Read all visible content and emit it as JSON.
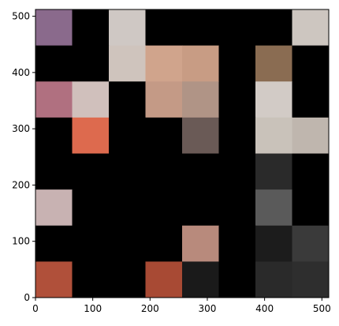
{
  "chart_data": {
    "type": "image",
    "grid_rows": 8,
    "grid_cols": 8,
    "xlim": [
      0,
      512
    ],
    "ylim": [
      0,
      512
    ],
    "xticks": [
      0,
      100,
      200,
      300,
      400,
      500
    ],
    "yticks": [
      0,
      100,
      200,
      300,
      400,
      500
    ],
    "xtick_labels": [
      "0",
      "100",
      "200",
      "300",
      "400",
      "500"
    ],
    "ytick_labels": [
      "0",
      "100",
      "200",
      "300",
      "400",
      "500"
    ],
    "grid": false,
    "tiles_top_to_bottom": [
      [
        "#8a6a8c",
        "#000000",
        "#cfc8c4",
        "#000000",
        "#000000",
        "#000000",
        "#000000",
        "#cdc6c0"
      ],
      [
        "#000000",
        "#000000",
        "#cfc4bd",
        "#d0a48c",
        "#c89c84",
        "#000000",
        "#8a6c52",
        "#000000"
      ],
      [
        "#b07080",
        "#d0c0bc",
        "#000000",
        "#c49a86",
        "#b09486",
        "#000000",
        "#d2cbc6",
        "#000000"
      ],
      [
        "#000000",
        "#dd6a4e",
        "#000000",
        "#000000",
        "#6a5a56",
        "#000000",
        "#c9c2ba",
        "#bfb6ae"
      ],
      [
        "#000000",
        "#000000",
        "#000000",
        "#000000",
        "#000000",
        "#000000",
        "#2a2a2a",
        "#000000"
      ],
      [
        "#c8b2b2",
        "#000000",
        "#000000",
        "#000000",
        "#000000",
        "#000000",
        "#5a5a5a",
        "#000000"
      ],
      [
        "#000000",
        "#000000",
        "#000000",
        "#000000",
        "#b88a7c",
        "#000000",
        "#1c1c1c",
        "#3a3a3a"
      ],
      [
        "#b0503a",
        "#000000",
        "#000000",
        "#a84a34",
        "#1a1a1a",
        "#000000",
        "#2a2a2a",
        "#2e2e2e"
      ]
    ]
  }
}
